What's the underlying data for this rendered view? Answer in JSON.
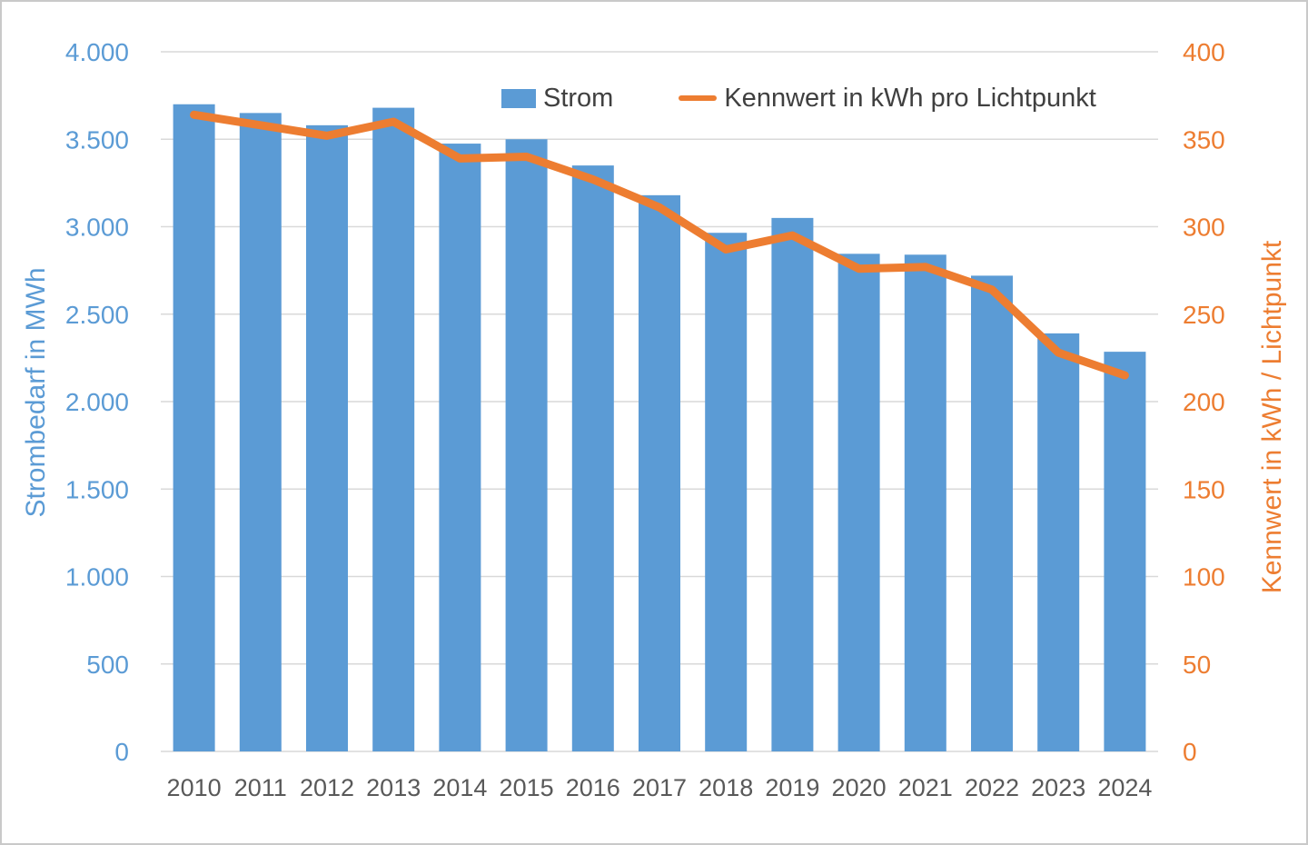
{
  "colors": {
    "bar": "#5B9BD5",
    "line": "#ED7D31",
    "left_axis_text": "#5B9BD5",
    "right_axis_text": "#ED7D31",
    "category_text": "#595959",
    "legend_text": "#404040",
    "gridline": "#D9D9D9",
    "background": "#FFFFFF",
    "border": "#C9C9C9"
  },
  "chart_data": {
    "type": "bar",
    "combo": "bar+line",
    "title": "",
    "categories": [
      "2010",
      "2011",
      "2012",
      "2013",
      "2014",
      "2015",
      "2016",
      "2017",
      "2018",
      "2019",
      "2020",
      "2021",
      "2022",
      "2023",
      "2024"
    ],
    "series": [
      {
        "name": "Strom",
        "type": "bar",
        "axis": "left",
        "unit": "MWh",
        "color": "#5B9BD5",
        "values": [
          3700,
          3650,
          3580,
          3680,
          3475,
          3500,
          3350,
          3180,
          2965,
          3050,
          2845,
          2840,
          2720,
          2390,
          2285
        ]
      },
      {
        "name": "Kennwert in kWh pro Lichtpunkt",
        "type": "line",
        "axis": "right",
        "unit": "kWh/Lichtpunkt",
        "color": "#ED7D31",
        "values": [
          364,
          358,
          352,
          360,
          339,
          340,
          327,
          311,
          287,
          295,
          276,
          277,
          264,
          228,
          215
        ]
      }
    ],
    "left_axis": {
      "title": "Strombedarf in MWh",
      "min": 0,
      "max": 4000,
      "step": 500,
      "tick_labels": [
        "0",
        "500",
        "1.000",
        "1.500",
        "2.000",
        "2.500",
        "3.000",
        "3.500",
        "4.000"
      ],
      "color": "#5B9BD5"
    },
    "right_axis": {
      "title": "Kennwert in kWh / Lichtpunkt",
      "min": 0,
      "max": 400,
      "step": 50,
      "tick_labels": [
        "0",
        "50",
        "100",
        "150",
        "200",
        "250",
        "300",
        "350",
        "400"
      ],
      "color": "#ED7D31"
    },
    "grid": "horizontal",
    "legend_position": "top"
  }
}
